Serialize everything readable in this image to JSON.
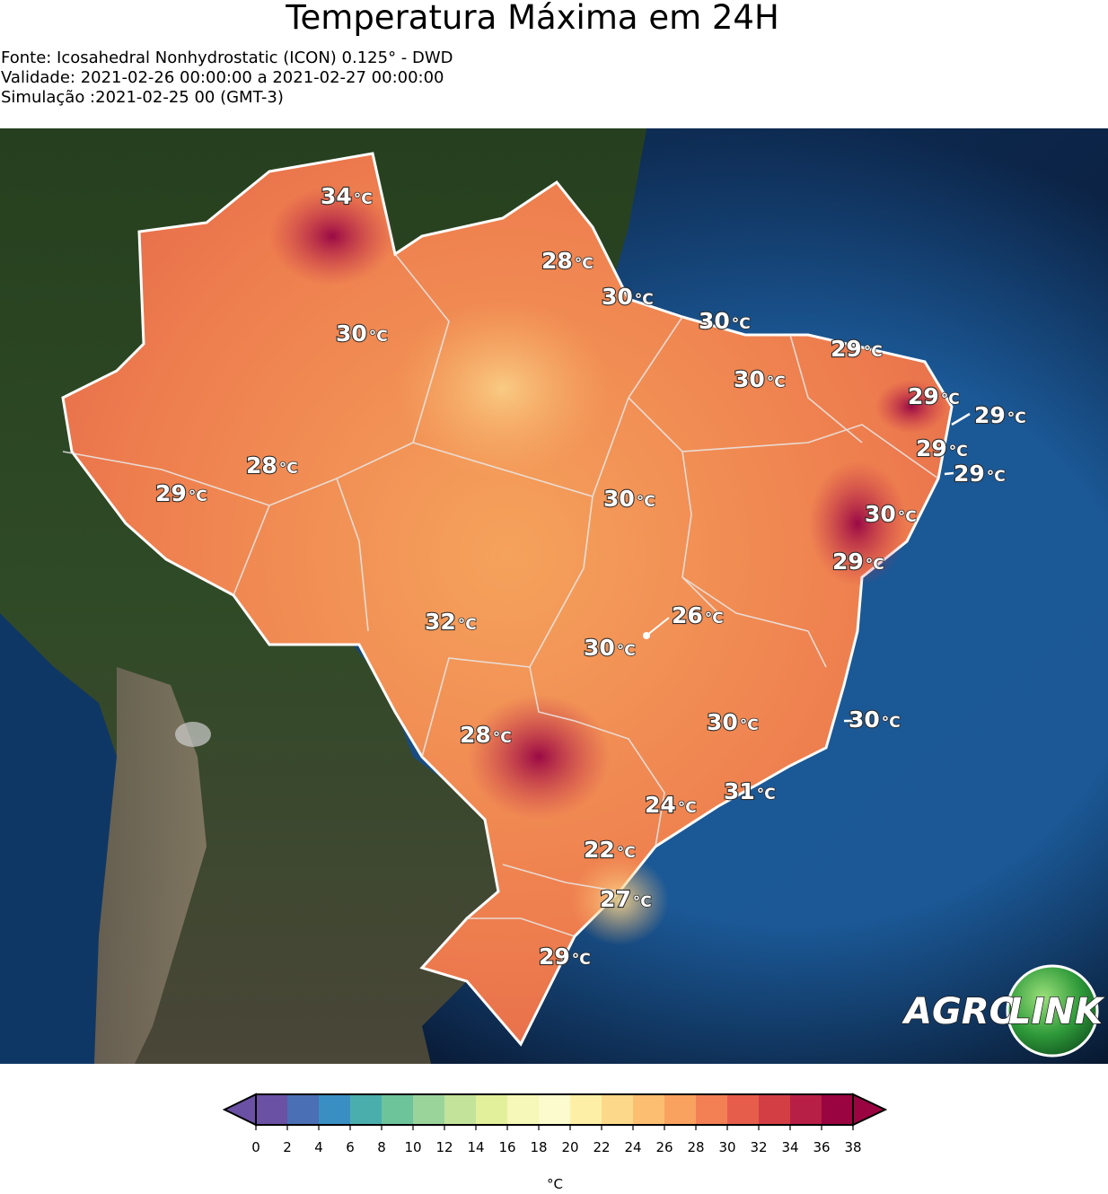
{
  "title": "Temperatura Máxima em 24H",
  "meta": {
    "source": "Fonte: Icosahedral Nonhydrostatic (ICON) 0.125° - DWD",
    "validity": "Validade: 2021-02-26 00:00:00 a 2021-02-27 00:00:00",
    "simulation": "Simulação :2021-02-25 00 (GMT-3)"
  },
  "logo": {
    "part1": "AGRO",
    "part2": "LINK"
  },
  "unit_symbol": "°C",
  "temperature_labels": [
    {
      "value": "34"
    },
    {
      "value": "28"
    },
    {
      "value": "30"
    },
    {
      "value": "30"
    },
    {
      "value": "30"
    },
    {
      "value": "29"
    },
    {
      "value": "30"
    },
    {
      "value": "29"
    },
    {
      "value": "29"
    },
    {
      "value": "29"
    },
    {
      "value": "29"
    },
    {
      "value": "28"
    },
    {
      "value": "29"
    },
    {
      "value": "30"
    },
    {
      "value": "30"
    },
    {
      "value": "29"
    },
    {
      "value": "26"
    },
    {
      "value": "32"
    },
    {
      "value": "30"
    },
    {
      "value": "28"
    },
    {
      "value": "30"
    },
    {
      "value": "30"
    },
    {
      "value": "31"
    },
    {
      "value": "24"
    },
    {
      "value": "22"
    },
    {
      "value": "27"
    },
    {
      "value": "29"
    }
  ],
  "colorbar": {
    "unit": "°C",
    "ticks": [
      "0",
      "2",
      "4",
      "6",
      "8",
      "10",
      "12",
      "14",
      "16",
      "18",
      "20",
      "22",
      "24",
      "26",
      "28",
      "30",
      "32",
      "34",
      "36",
      "38"
    ],
    "colors": [
      "#6a51a3",
      "#4a6fb5",
      "#3a8fc2",
      "#4aaead",
      "#6ec49a",
      "#9bd49a",
      "#c3e39a",
      "#e3f09b",
      "#f5f8b8",
      "#fbfbcd",
      "#fdf0a6",
      "#fcd98a",
      "#fcbf72",
      "#f9a15e",
      "#f28054",
      "#e65d4b",
      "#d33e45",
      "#b71f47",
      "#9a0441"
    ],
    "under_color": "#6a51a3",
    "over_color": "#9a0441"
  }
}
